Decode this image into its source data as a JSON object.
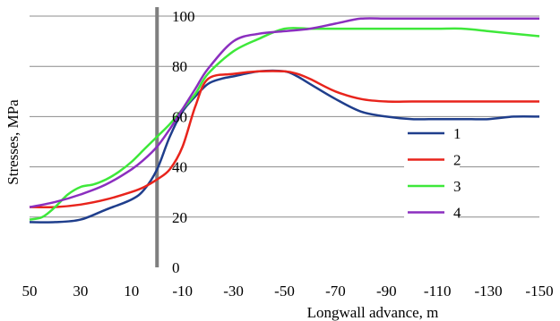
{
  "chart_data": {
    "type": "line",
    "xlabel": "Longwall advance, m",
    "ylabel": "Stresses, MPa",
    "xlim": [
      50,
      -150
    ],
    "ylim": [
      0,
      100
    ],
    "xticks": [
      "50",
      "30",
      "10",
      "-10",
      "-30",
      "-50",
      "-70",
      "-90",
      "-110",
      "-130",
      "-150"
    ],
    "yticks": [
      "0",
      "20",
      "40",
      "60",
      "80",
      "100"
    ],
    "grid": "horizontal",
    "legend_position": "right",
    "face_line_x": 0,
    "series": [
      {
        "name": "1",
        "color": "#1f3e8c",
        "x": [
          50,
          40,
          30,
          20,
          10,
          5,
          0,
          -5,
          -10,
          -15,
          -20,
          -25,
          -30,
          -40,
          -50,
          -55,
          -60,
          -70,
          -80,
          -90,
          -100,
          -110,
          -120,
          -130,
          -140,
          -150
        ],
        "y": [
          18,
          18,
          19,
          23,
          27,
          31,
          39,
          52,
          62,
          68,
          73,
          75,
          76,
          78,
          78,
          76,
          73,
          67,
          62,
          60,
          59,
          59,
          59,
          59,
          60,
          60
        ]
      },
      {
        "name": "2",
        "color": "#e8241c",
        "x": [
          50,
          40,
          30,
          20,
          10,
          5,
          0,
          -5,
          -10,
          -15,
          -20,
          -30,
          -40,
          -50,
          -55,
          -60,
          -70,
          -80,
          -90,
          -100,
          -110,
          -120,
          -130,
          -140,
          -150
        ],
        "y": [
          24,
          24,
          25,
          27,
          30,
          32,
          35,
          39,
          48,
          64,
          75,
          77,
          78,
          78,
          77,
          75,
          70,
          67,
          66,
          66,
          66,
          66,
          66,
          66,
          66
        ]
      },
      {
        "name": "3",
        "color": "#3ee83a",
        "x": [
          50,
          45,
          40,
          35,
          30,
          25,
          20,
          15,
          10,
          5,
          0,
          -5,
          -10,
          -15,
          -20,
          -30,
          -40,
          -50,
          -60,
          -70,
          -80,
          -90,
          -100,
          -110,
          -120,
          -130,
          -140,
          -150
        ],
        "y": [
          19,
          20,
          24,
          29,
          32,
          33,
          35,
          38,
          42,
          47,
          52,
          57,
          63,
          69,
          77,
          86,
          91,
          95,
          95,
          95,
          95,
          95,
          95,
          95,
          95,
          94,
          93,
          92
        ]
      },
      {
        "name": "4",
        "color": "#8b2fbf",
        "x": [
          50,
          40,
          30,
          20,
          10,
          5,
          0,
          -5,
          -10,
          -15,
          -20,
          -30,
          -40,
          -50,
          -60,
          -70,
          -80,
          -90,
          -100,
          -110,
          -120,
          -130,
          -140,
          -150
        ],
        "y": [
          24,
          26,
          29,
          33,
          39,
          43,
          48,
          55,
          63,
          71,
          79,
          90,
          93,
          94,
          95,
          97,
          99,
          99,
          99,
          99,
          99,
          99,
          99,
          99
        ]
      }
    ]
  }
}
